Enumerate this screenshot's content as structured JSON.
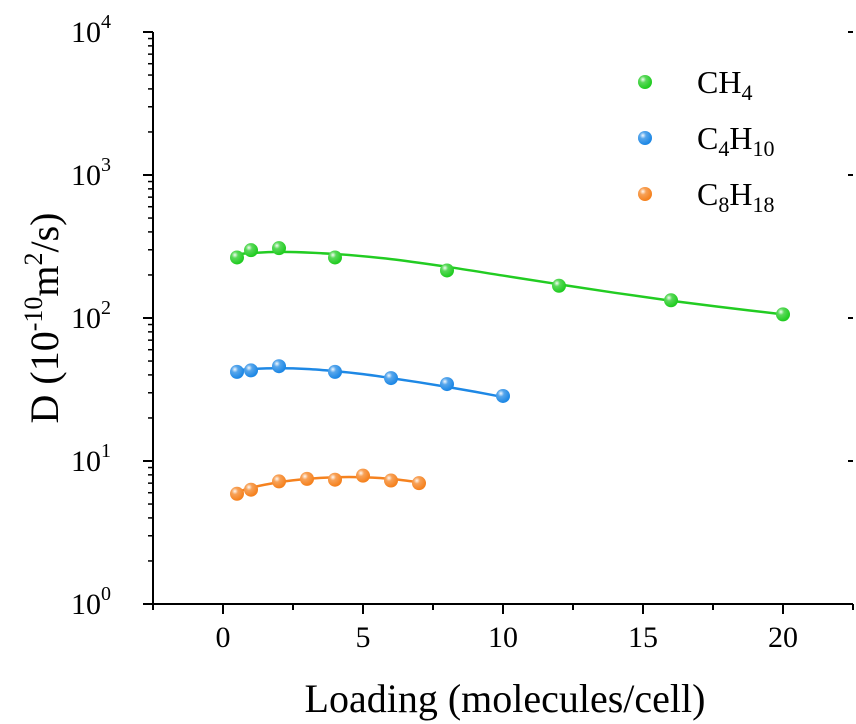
{
  "chart_data": {
    "type": "scatter",
    "xlabel": "Loading (molecules/cell)",
    "ylabel": "D (10⁻¹⁰m²/s)",
    "ylabel_parts": {
      "pre": "D (10",
      "exp1": "-10",
      "mid": "m",
      "exp2": "2",
      "post": "/s)"
    },
    "xlim": [
      -2.5,
      22.5
    ],
    "ylim": [
      1,
      10000
    ],
    "yscale": "log",
    "xticks": [
      "0",
      "5",
      "10",
      "15",
      "20"
    ],
    "xtick_values": [
      0,
      5,
      10,
      15,
      20
    ],
    "yticks": [
      {
        "base": "10",
        "exp": "0",
        "value": 1
      },
      {
        "base": "10",
        "exp": "1",
        "value": 10
      },
      {
        "base": "10",
        "exp": "2",
        "value": 100
      },
      {
        "base": "10",
        "exp": "3",
        "value": 1000
      },
      {
        "base": "10",
        "exp": "4",
        "value": 10000
      }
    ],
    "grid": false,
    "legend_position": "top-right",
    "series": [
      {
        "name": "CH4",
        "label_parts": [
          {
            "t": "CH",
            "sub": false
          },
          {
            "t": "4",
            "sub": true
          }
        ],
        "color": "#22cc22",
        "x": [
          0.5,
          1,
          2,
          4,
          8,
          12,
          16,
          20
        ],
        "y": [
          265,
          298,
          308,
          265,
          215,
          168,
          133,
          106
        ],
        "fit_x": [
          0.5,
          2,
          4,
          6,
          8,
          10,
          12,
          14,
          16,
          18,
          20
        ],
        "fit_y": [
          280,
          290,
          280,
          258,
          228,
          198,
          172,
          150,
          132,
          118,
          106
        ]
      },
      {
        "name": "C4H10",
        "label_parts": [
          {
            "t": "C",
            "sub": false
          },
          {
            "t": "4",
            "sub": true
          },
          {
            "t": "H",
            "sub": false
          },
          {
            "t": "10",
            "sub": true
          }
        ],
        "color": "#1e88e5",
        "x": [
          0.5,
          1,
          2,
          4,
          6,
          8,
          10
        ],
        "y": [
          42,
          43,
          46,
          42,
          38,
          34.5,
          28.5
        ],
        "fit_x": [
          0.5,
          1,
          2,
          3,
          4,
          5,
          6,
          7,
          8,
          9,
          10
        ],
        "fit_y": [
          43,
          44,
          44.5,
          44,
          42.5,
          40.5,
          38,
          35.5,
          33,
          30.5,
          28
        ]
      },
      {
        "name": "C8H18",
        "label_parts": [
          {
            "t": "C",
            "sub": false
          },
          {
            "t": "8",
            "sub": true
          },
          {
            "t": "H",
            "sub": false
          },
          {
            "t": "18",
            "sub": true
          }
        ],
        "color": "#f5821f",
        "x": [
          0.5,
          1,
          2,
          3,
          4,
          5,
          6,
          7
        ],
        "y": [
          5.9,
          6.3,
          7.2,
          7.5,
          7.4,
          7.9,
          7.3,
          7.0
        ],
        "fit_x": [
          0.5,
          1,
          2,
          3,
          4,
          5,
          6,
          7
        ],
        "fit_y": [
          6.0,
          6.5,
          7.1,
          7.5,
          7.7,
          7.7,
          7.5,
          7.1
        ]
      }
    ]
  }
}
